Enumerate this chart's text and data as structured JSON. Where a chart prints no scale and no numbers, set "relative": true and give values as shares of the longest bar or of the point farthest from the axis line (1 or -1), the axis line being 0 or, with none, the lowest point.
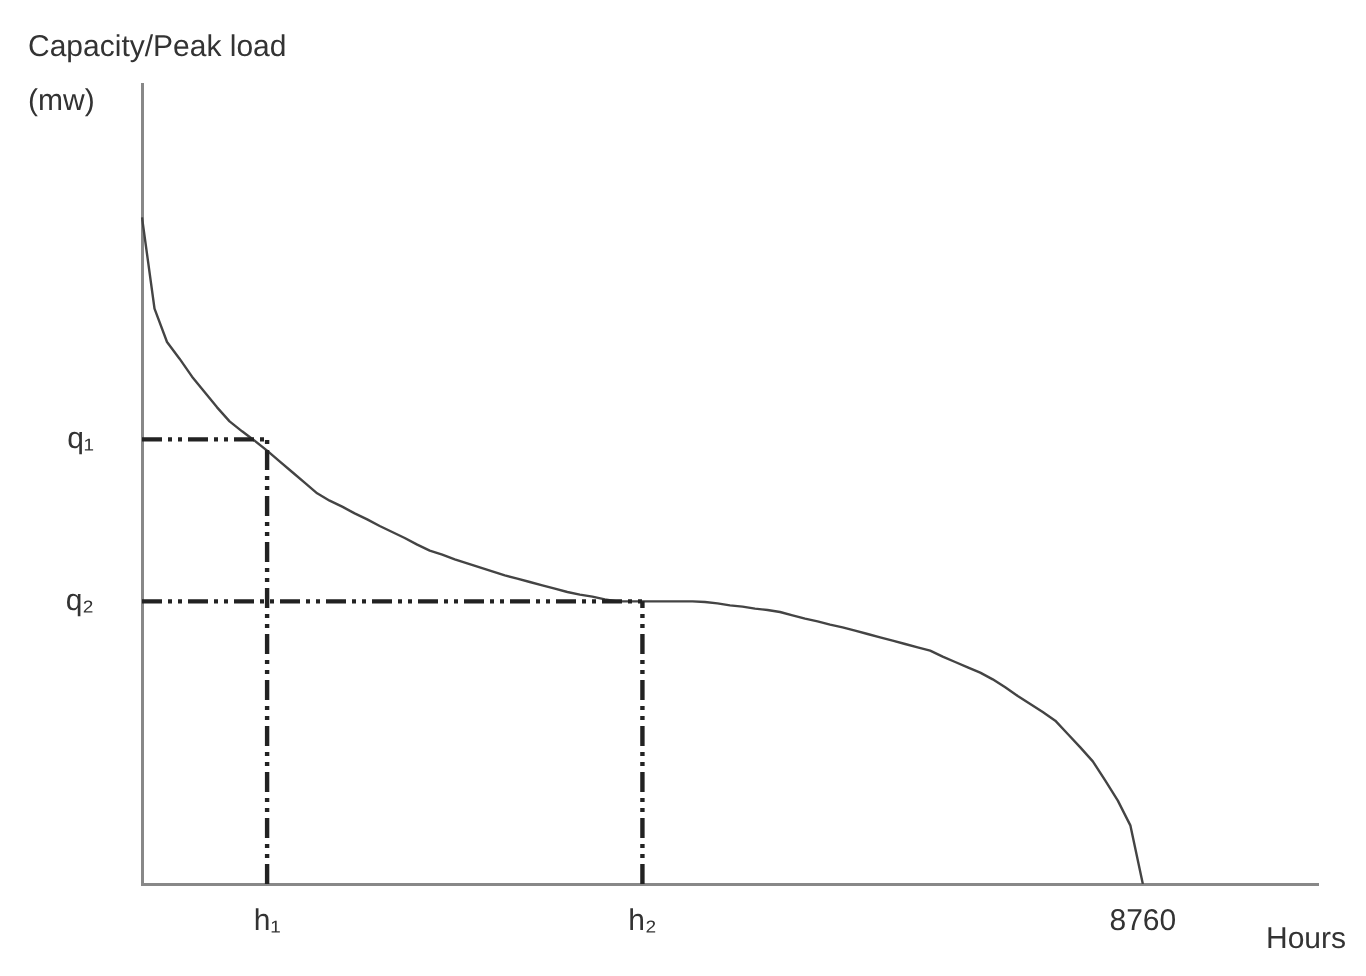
{
  "chart_data": {
    "type": "line",
    "relative": true,
    "ylabel": "Capacity/Peak load (mw)",
    "xlabel": "Hours",
    "categories": [
      null,
      null,
      null,
      null,
      null,
      null,
      null,
      null,
      null,
      null,
      "h₁",
      null,
      null,
      null,
      null,
      null,
      null,
      null,
      null,
      null,
      null,
      null,
      null,
      null,
      null,
      null,
      null,
      null,
      null,
      null,
      null,
      null,
      null,
      null,
      null,
      null,
      null,
      null,
      null,
      null,
      "h₂",
      null,
      null,
      null,
      null,
      null,
      null,
      null,
      null,
      null,
      null,
      null,
      null,
      null,
      null,
      null,
      null,
      null,
      null,
      null,
      null,
      null,
      null,
      null,
      null,
      null,
      null,
      null,
      null,
      null,
      null,
      null,
      null,
      null,
      null,
      null,
      null,
      null,
      null,
      null,
      "8760",
      null,
      null,
      null,
      null,
      null,
      null,
      null,
      null,
      null,
      null,
      null,
      null,
      null,
      null
    ],
    "grid": false,
    "legend": false,
    "marker": "none",
    "series": [
      {
        "color": "#444444",
        "values": [
          1,
          0.863,
          0.813,
          0.788,
          0.761,
          0.738,
          0.715,
          0.694,
          0.679,
          0.665,
          0.65,
          0.634,
          0.618,
          0.602,
          0.586,
          0.575,
          0.566,
          0.556,
          0.547,
          0.537,
          0.528,
          0.519,
          0.509,
          0.5,
          0.494,
          0.487,
          0.481,
          0.475,
          0.469,
          0.463,
          0.458,
          0.453,
          0.448,
          0.443,
          0.438,
          0.434,
          0.431,
          0.427,
          0.424,
          0.424,
          0.424,
          0.424,
          0.424,
          0.424,
          0.424,
          0.423,
          0.421,
          0.418,
          0.416,
          0.413,
          0.411,
          0.408,
          0.403,
          0.398,
          0.394,
          0.389,
          0.385,
          0.38,
          0.375,
          0.37,
          0.365,
          0.36,
          0.355,
          0.35,
          0.341,
          0.333,
          0.325,
          0.317,
          0.307,
          0.295,
          0.282,
          0.27,
          0.258,
          0.245,
          0.225,
          0.205,
          0.184,
          0.155,
          0.125,
          0.088,
          0,
          null,
          null,
          null,
          null,
          null,
          null,
          null,
          null,
          null,
          null,
          null,
          null,
          null,
          null
        ]
      }
    ],
    "ref_lines": [
      {
        "axis": "y",
        "value": 0.667,
        "label": "q₁",
        "color": "#222222",
        "line_style": "dashed"
      },
      {
        "axis": "y",
        "value": 0.424,
        "label": "q₂",
        "color": "#222222",
        "line_style": "dashed"
      },
      {
        "axis": "x",
        "value": "h₁",
        "color": "#222222",
        "line_style": "dashed"
      },
      {
        "axis": "x",
        "value": "h₂",
        "color": "#222222",
        "line_style": "dashed"
      }
    ]
  }
}
